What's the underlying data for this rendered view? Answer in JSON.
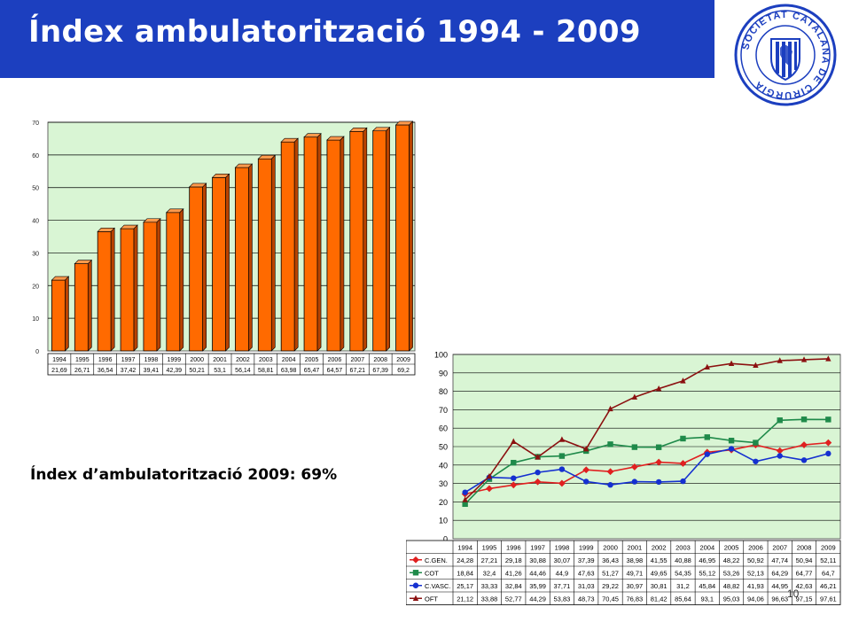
{
  "slide": {
    "title": "Índex ambulatorització 1994 - 2009",
    "summary": "Índex d’ambulatorització 2009:  69%",
    "page_number": "10",
    "colors": {
      "title_bar": "#1c3fbf",
      "title_text": "#ffffff",
      "seal": "#1c3fbf"
    }
  },
  "seal": {
    "text": "SOCIETAT CATALANA DE CIRURGIA",
    "icon": "shield-with-bars-icon"
  },
  "chart_data": [
    {
      "type": "bar",
      "title": "",
      "xlabel": "",
      "ylabel": "",
      "ylim": [
        0,
        70
      ],
      "yticks": [
        0,
        10,
        20,
        30,
        40,
        50,
        60,
        70
      ],
      "grid": true,
      "plot_background": "#d9f5d4",
      "bar_color": "#ff6a00",
      "categories": [
        "1994",
        "1995",
        "1996",
        "1997",
        "1998",
        "1999",
        "2000",
        "2001",
        "2002",
        "2003",
        "2004",
        "2005",
        "2006",
        "2007",
        "2008",
        "2009"
      ],
      "values": [
        21.69,
        26.71,
        36.54,
        37.42,
        39.41,
        42.39,
        50.21,
        53.1,
        56.14,
        58.81,
        63.98,
        65.47,
        64.57,
        67.21,
        67.39,
        69.2
      ],
      "table_labels": [
        "21,69",
        "26,71",
        "36,54",
        "37,42",
        "39,41",
        "42,39",
        "50,21",
        "53,1",
        "56,14",
        "58,81",
        "63,98",
        "65,47",
        "64,57",
        "67,21",
        "67,39",
        "69,2"
      ]
    },
    {
      "type": "line",
      "title": "",
      "xlabel": "",
      "ylabel": "",
      "ylim": [
        0,
        100
      ],
      "yticks": [
        0,
        10,
        20,
        30,
        40,
        50,
        60,
        70,
        80,
        90,
        100
      ],
      "grid": true,
      "plot_background": "#d9f5d4",
      "legend": "table-left",
      "categories": [
        "1994",
        "1995",
        "1996",
        "1997",
        "1998",
        "1999",
        "2000",
        "2001",
        "2002",
        "2003",
        "2004",
        "2005",
        "2006",
        "2007",
        "2008",
        "2009"
      ],
      "series": [
        {
          "name": "C.GEN.",
          "color": "#e02020",
          "marker": "diamond",
          "values": [
            24.28,
            27.21,
            29.18,
            30.88,
            30.07,
            37.39,
            36.43,
            38.98,
            41.55,
            40.88,
            46.95,
            48.22,
            50.92,
            47.74,
            50.94,
            52.11
          ],
          "labels": [
            "24,28",
            "27,21",
            "29,18",
            "30,88",
            "30,07",
            "37,39",
            "36,43",
            "38,98",
            "41,55",
            "40,88",
            "46,95",
            "48,22",
            "50,92",
            "47,74",
            "50,94",
            "52,11"
          ]
        },
        {
          "name": "COT",
          "color": "#1f8a4a",
          "marker": "square",
          "values": [
            18.84,
            32.4,
            41.26,
            44.46,
            44.9,
            47.63,
            51.27,
            49.71,
            49.65,
            54.35,
            55.12,
            53.26,
            52.13,
            64.29,
            64.77,
            64.7
          ],
          "labels": [
            "18,84",
            "32,4",
            "41,26",
            "44,46",
            "44,9",
            "47,63",
            "51,27",
            "49,71",
            "49,65",
            "54,35",
            "55,12",
            "53,26",
            "52,13",
            "64,29",
            "64,77",
            "64,7"
          ]
        },
        {
          "name": "C.VASC.",
          "color": "#1530d0",
          "marker": "circle",
          "values": [
            25.17,
            33.33,
            32.84,
            35.99,
            37.71,
            31.03,
            29.22,
            30.97,
            30.81,
            31.2,
            45.84,
            48.82,
            41.93,
            44.95,
            42.63,
            46.21
          ],
          "labels": [
            "25,17",
            "33,33",
            "32,84",
            "35,99",
            "37,71",
            "31,03",
            "29,22",
            "30,97",
            "30,81",
            "31,2",
            "45,84",
            "48,82",
            "41,93",
            "44,95",
            "42,63",
            "46,21"
          ]
        },
        {
          "name": "OFT",
          "color": "#8b1010",
          "marker": "triangle",
          "values": [
            21.12,
            33.88,
            52.77,
            44.29,
            53.83,
            48.73,
            70.45,
            76.83,
            81.42,
            85.64,
            93.1,
            95.03,
            94.06,
            96.63,
            97.15,
            97.61
          ],
          "labels": [
            "21,12",
            "33,88",
            "52,77",
            "44,29",
            "53,83",
            "48,73",
            "70,45",
            "76,83",
            "81,42",
            "85,64",
            "93,1",
            "95,03",
            "94,06",
            "96,63",
            "97,15",
            "97,61"
          ]
        }
      ]
    }
  ]
}
